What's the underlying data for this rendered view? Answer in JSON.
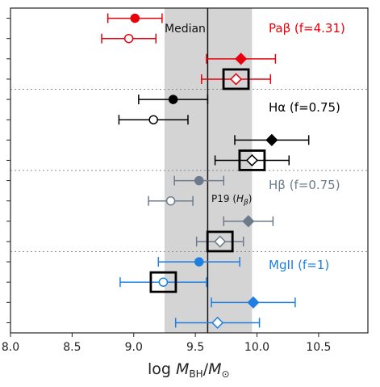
{
  "chart_data": {
    "type": "scatter",
    "xlabel_text": "log ",
    "xlabel_var": "M",
    "xlabel_sub": "BH",
    "xlabel_sep": "/",
    "xlabel_var2": "M",
    "xlabel_sub2": "⊙",
    "xlim": [
      8.0,
      10.9
    ],
    "xticks": [
      {
        "v": 8.0,
        "label": "8.0"
      },
      {
        "v": 8.5,
        "label": "8.5"
      },
      {
        "v": 9.0,
        "label": "9.0"
      },
      {
        "v": 9.5,
        "label": "9.5"
      },
      {
        "v": 10.0,
        "label": "10.0"
      },
      {
        "v": 10.5,
        "label": "10.5"
      }
    ],
    "median": 9.6,
    "median_label": "Median",
    "band": [
      9.25,
      9.96
    ],
    "n_rows": 16,
    "group_separators_after_row": [
      3,
      7,
      11
    ],
    "colors": {
      "pabeta": "#e8000b",
      "halpha": "#000000",
      "hbeta": "#6b7b8c",
      "mgii": "#1f7fe0",
      "band": "#d4d4d4",
      "separator": "#888888"
    },
    "groups": [
      {
        "key": "pabeta",
        "label": "Paβ (f=4.31)"
      },
      {
        "key": "halpha",
        "label": "Hα (f=0.75)"
      },
      {
        "key": "hbeta",
        "label": "Hβ (f=0.75)"
      },
      {
        "key": "mgii",
        "label": "MgII (f=1)"
      }
    ],
    "points": [
      {
        "group": "pabeta",
        "row": 0.5,
        "x": 9.01,
        "xlo": 8.79,
        "xhi": 9.23,
        "marker": "circle",
        "filled": true
      },
      {
        "group": "pabeta",
        "row": 1.5,
        "x": 8.96,
        "xlo": 8.74,
        "xhi": 9.18,
        "marker": "circle",
        "filled": false
      },
      {
        "group": "pabeta",
        "row": 2.5,
        "x": 9.87,
        "xlo": 9.59,
        "xhi": 10.15,
        "marker": "diamond",
        "filled": true
      },
      {
        "group": "pabeta",
        "row": 3.5,
        "x": 9.83,
        "xlo": 9.55,
        "xhi": 10.11,
        "marker": "diamond",
        "filled": false,
        "boxed": true
      },
      {
        "group": "halpha",
        "row": 4.5,
        "x": 9.32,
        "xlo": 9.04,
        "xhi": 9.6,
        "marker": "circle",
        "filled": true
      },
      {
        "group": "halpha",
        "row": 5.5,
        "x": 9.16,
        "xlo": 8.88,
        "xhi": 9.44,
        "marker": "circle",
        "filled": false
      },
      {
        "group": "halpha",
        "row": 6.5,
        "x": 10.12,
        "xlo": 9.82,
        "xhi": 10.42,
        "marker": "diamond",
        "filled": true
      },
      {
        "group": "halpha",
        "row": 7.5,
        "x": 9.96,
        "xlo": 9.66,
        "xhi": 10.26,
        "marker": "diamond",
        "filled": false,
        "boxed": true
      },
      {
        "group": "hbeta",
        "row": 8.5,
        "x": 9.53,
        "xlo": 9.33,
        "xhi": 9.73,
        "marker": "circle",
        "filled": true
      },
      {
        "group": "hbeta",
        "row": 9.5,
        "x": 9.3,
        "xlo": 9.12,
        "xhi": 9.48,
        "marker": "circle",
        "filled": false
      },
      {
        "group": "hbeta",
        "row": 10.5,
        "x": 9.93,
        "xlo": 9.73,
        "xhi": 10.13,
        "marker": "diamond",
        "filled": true
      },
      {
        "group": "hbeta",
        "row": 11.5,
        "x": 9.7,
        "xlo": 9.51,
        "xhi": 9.89,
        "marker": "diamond",
        "filled": false,
        "boxed": true
      },
      {
        "group": "mgii",
        "row": 12.5,
        "x": 9.53,
        "xlo": 9.2,
        "xhi": 9.86,
        "marker": "circle",
        "filled": true
      },
      {
        "group": "mgii",
        "row": 13.5,
        "x": 9.24,
        "xlo": 8.89,
        "xhi": 9.59,
        "marker": "circle",
        "filled": false,
        "boxed": true
      },
      {
        "group": "mgii",
        "row": 14.5,
        "x": 9.97,
        "xlo": 9.63,
        "xhi": 10.31,
        "marker": "diamond",
        "filled": true
      },
      {
        "group": "mgii",
        "row": 15.5,
        "x": 9.68,
        "xlo": 9.34,
        "xhi": 10.02,
        "marker": "diamond",
        "filled": false
      }
    ],
    "annotation": {
      "text": "P19 (",
      "italic": "H",
      "sub": "β",
      "close": ")"
    }
  }
}
